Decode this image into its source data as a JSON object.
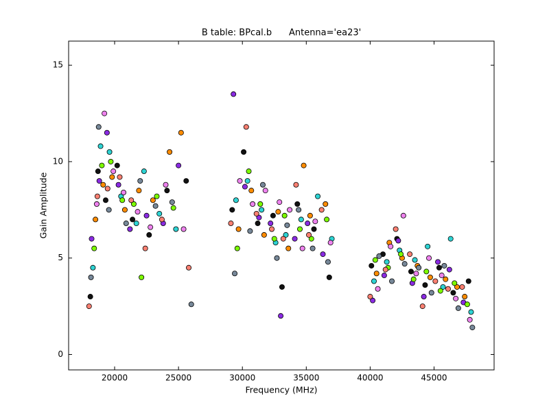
{
  "chart_data": {
    "type": "scatter",
    "title": "B table: BPcal.b      Antenna='ea23'",
    "x_label": "Frequency (MHz)",
    "y_label": "Gain Amplitude",
    "xlim": [
      16400,
      49700
    ],
    "ylim": [
      -0.8,
      16.25
    ],
    "xticks": [
      20000,
      25000,
      30000,
      35000,
      40000,
      45000
    ],
    "yticks": [
      0,
      5,
      10,
      15
    ],
    "grid": false,
    "series": [
      {
        "color": "#111111",
        "x": [
          18100,
          18700,
          19300,
          20200,
          21400,
          22700,
          24100,
          25600,
          29200,
          30100,
          31200,
          32400,
          33100,
          34300,
          35600,
          36800,
          40100,
          41000,
          42100,
          43200,
          44300,
          45400,
          46500,
          47700
        ],
        "values": [
          3.0,
          9.5,
          8.0,
          9.8,
          7.0,
          6.2,
          8.5,
          9.0,
          7.5,
          10.5,
          6.8,
          7.2,
          3.5,
          7.8,
          6.5,
          4.0,
          4.6,
          5.2,
          6.0,
          4.3,
          3.6,
          4.5,
          3.2,
          3.8
        ]
      },
      {
        "color": "#2ed3d3",
        "x": [
          18300,
          18900,
          19600,
          20500,
          21700,
          22300,
          23500,
          24800,
          29500,
          30400,
          31500,
          32600,
          33400,
          34600,
          35900,
          37000,
          40300,
          41300,
          42300,
          43500,
          44500,
          45700,
          46300,
          47900
        ],
        "values": [
          4.5,
          10.8,
          10.5,
          8.2,
          6.8,
          9.5,
          7.3,
          6.5,
          8.0,
          9.0,
          7.5,
          5.8,
          6.2,
          7.0,
          8.2,
          6.0,
          3.8,
          4.8,
          5.4,
          4.9,
          5.6,
          3.5,
          6.0,
          2.2
        ]
      },
      {
        "color": "#ff8c00",
        "x": [
          18500,
          19100,
          19800,
          20800,
          21900,
          23000,
          24300,
          25200,
          29700,
          30700,
          31700,
          32800,
          33600,
          34800,
          35300,
          36500,
          40500,
          41500,
          42500,
          43700,
          44700,
          45900,
          46800,
          47400
        ],
        "values": [
          7.0,
          8.8,
          9.2,
          7.5,
          8.5,
          8.0,
          10.5,
          11.5,
          6.5,
          8.5,
          6.2,
          7.4,
          5.5,
          9.8,
          7.2,
          7.8,
          4.2,
          5.8,
          5.0,
          4.6,
          4.0,
          3.9,
          3.5,
          3.0
        ]
      },
      {
        "color": "#8a2be2",
        "x": [
          18200,
          18800,
          19400,
          20300,
          21200,
          22500,
          23800,
          25000,
          29300,
          30200,
          31300,
          32200,
          33000,
          34100,
          35100,
          36300,
          40200,
          41100,
          42200,
          43300,
          44200,
          45300,
          46200,
          47300
        ],
        "values": [
          6.0,
          9.0,
          11.5,
          8.8,
          6.5,
          7.2,
          6.8,
          9.8,
          13.5,
          8.7,
          7.1,
          6.8,
          2.0,
          6.0,
          6.8,
          5.2,
          2.8,
          4.1,
          5.9,
          3.7,
          3.0,
          4.8,
          4.4,
          2.7
        ]
      },
      {
        "color": "#7cfc00",
        "x": [
          18400,
          19000,
          19700,
          20600,
          21500,
          22100,
          23300,
          24600,
          29600,
          30500,
          31400,
          32500,
          33300,
          34500,
          35400,
          36600,
          40400,
          41400,
          42400,
          43400,
          44400,
          45500,
          46600,
          47600
        ],
        "values": [
          5.5,
          9.8,
          10.0,
          8.0,
          7.8,
          4.0,
          8.2,
          7.6,
          5.5,
          9.5,
          7.8,
          6.0,
          7.2,
          6.5,
          6.0,
          7.0,
          4.9,
          4.5,
          5.2,
          3.9,
          4.3,
          3.3,
          3.7,
          2.6
        ]
      },
      {
        "color": "#ee82ee",
        "x": [
          18600,
          19200,
          19900,
          20700,
          21800,
          22800,
          24000,
          25400,
          29800,
          30800,
          31800,
          32900,
          33700,
          34700,
          35700,
          36900,
          40600,
          41600,
          42600,
          43600,
          44600,
          45600,
          46700,
          47800
        ],
        "values": [
          7.8,
          12.5,
          9.5,
          8.4,
          7.4,
          6.6,
          8.8,
          6.5,
          9.0,
          7.8,
          8.5,
          7.9,
          7.5,
          5.5,
          6.9,
          5.8,
          3.4,
          5.6,
          7.2,
          4.2,
          5.0,
          4.1,
          2.9,
          1.8
        ]
      },
      {
        "color": "#fa8072",
        "x": [
          18000,
          18650,
          19450,
          20400,
          21300,
          22400,
          23700,
          25800,
          29100,
          30300,
          31100,
          32300,
          33200,
          34200,
          35200,
          36200,
          40000,
          41200,
          42000,
          43100,
          44100,
          45100,
          46100,
          47200
        ],
        "values": [
          2.5,
          8.2,
          8.6,
          9.2,
          8.0,
          5.5,
          7.0,
          4.5,
          6.8,
          11.8,
          7.3,
          6.5,
          6.0,
          8.8,
          6.2,
          7.5,
          3.0,
          4.4,
          6.5,
          5.2,
          2.5,
          3.8,
          3.4,
          3.5
        ]
      },
      {
        "color": "#778899",
        "x": [
          18150,
          18750,
          19550,
          20900,
          22000,
          23200,
          24500,
          26000,
          29400,
          30600,
          31600,
          32700,
          33500,
          34400,
          35500,
          36700,
          40700,
          41700,
          42700,
          43800,
          44800,
          45800,
          46900,
          48000
        ],
        "values": [
          4.0,
          11.8,
          7.5,
          6.8,
          9.0,
          7.7,
          7.9,
          2.6,
          4.2,
          6.4,
          8.8,
          5.0,
          6.7,
          7.5,
          5.5,
          4.8,
          5.1,
          3.8,
          4.7,
          4.5,
          3.2,
          4.6,
          2.4,
          1.4
        ]
      }
    ]
  }
}
